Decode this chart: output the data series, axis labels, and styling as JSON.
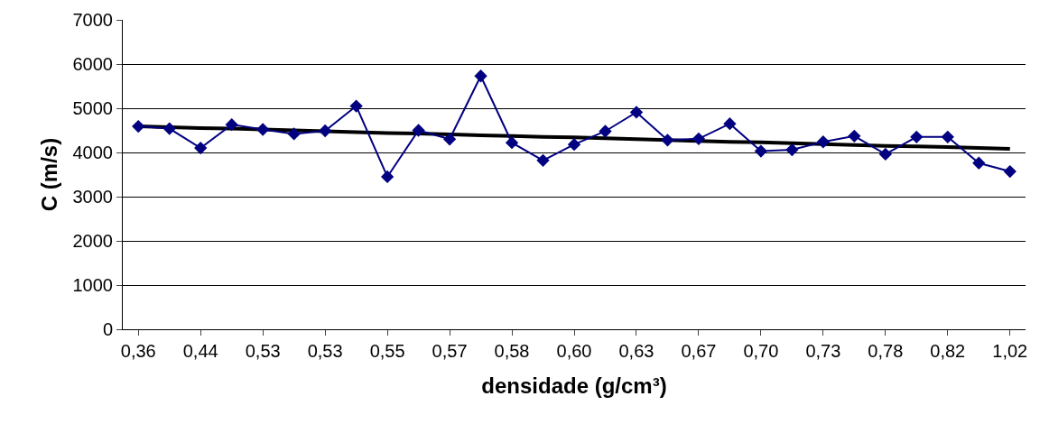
{
  "chart_data": {
    "type": "line",
    "xlabel": "densidade (g/cm³)",
    "ylabel": "C (m/s)",
    "categories": [
      "0,36",
      null,
      "0,44",
      null,
      "0,53",
      null,
      "0,53",
      null,
      "0,55",
      null,
      "0,57",
      null,
      "0,58",
      null,
      "0,60",
      null,
      "0,63",
      null,
      "0,67",
      null,
      "0,70",
      null,
      "0,73",
      null,
      "0,78",
      null,
      "0,82",
      null,
      "1,02"
    ],
    "series": [
      {
        "color": "#000080",
        "values": [
          4590,
          4540,
          4100,
          4630,
          4520,
          4420,
          4490,
          5050,
          3450,
          4500,
          4300,
          5730,
          4220,
          3820,
          4180,
          4480,
          4910,
          4280,
          4310,
          4650,
          4030,
          4060,
          4240,
          4370,
          3960,
          4350,
          4350,
          3760,
          3570
        ]
      },
      {
        "color": "#000000",
        "marker": "none",
        "values": [
          4590,
          4570,
          4550,
          4540,
          4520,
          4500,
          4480,
          4460,
          4440,
          4430,
          4410,
          4390,
          4370,
          4350,
          4340,
          4320,
          4300,
          4280,
          4260,
          4240,
          4230,
          4210,
          4190,
          4170,
          4150,
          4140,
          4120,
          4100,
          4080
        ]
      }
    ],
    "ylim": [
      0,
      7000
    ],
    "yticks": [
      0,
      1000,
      2000,
      3000,
      4000,
      5000,
      6000,
      7000
    ],
    "grid": "y",
    "legend": false,
    "marker": "diamond",
    "line_style": "solid"
  }
}
